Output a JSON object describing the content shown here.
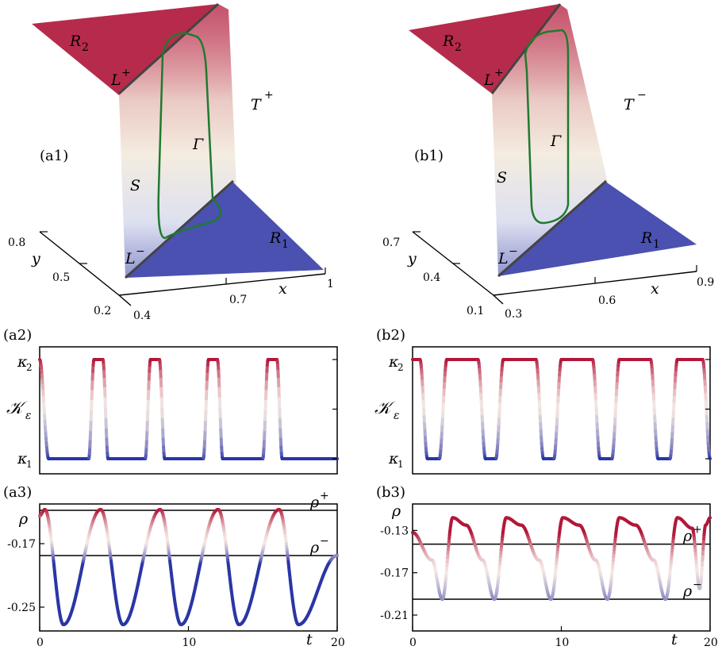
{
  "colors": {
    "kappa_high": "#B2183A",
    "kappa_mid": "#F4E8E4",
    "kappa_low": "#2B36A6",
    "cycle_line": "#1F7A2E",
    "axis": "#000000"
  },
  "chart_data": [
    {
      "id": "a1",
      "type": "surface3d",
      "panel_label": "(a1)",
      "x_ticks": [
        "0.4",
        "0.7",
        "1"
      ],
      "y_ticks": [
        "0.2",
        "0.5",
        "0.8"
      ],
      "xlabel": "x",
      "ylabel": "y",
      "region_labels": {
        "upper": "R",
        "upper_sub": "2",
        "lower": "R",
        "lower_sub": "1",
        "slope": "S",
        "fold_top": "L",
        "fold_top_sup": "+",
        "fold_bottom": "L",
        "fold_bottom_sup": "−",
        "cycle": "Γ",
        "title": "T",
        "title_sup": "+"
      }
    },
    {
      "id": "b1",
      "type": "surface3d",
      "panel_label": "(b1)",
      "x_ticks": [
        "0.3",
        "0.6",
        "0.9"
      ],
      "y_ticks": [
        "0.1",
        "0.4",
        "0.7"
      ],
      "xlabel": "x",
      "ylabel": "y",
      "region_labels": {
        "upper": "R",
        "upper_sub": "2",
        "lower": "R",
        "lower_sub": "1",
        "slope": "S",
        "fold_top": "L",
        "fold_top_sup": "+",
        "fold_bottom": "L",
        "fold_bottom_sup": "−",
        "cycle": "Γ",
        "title": "T",
        "title_sup": "−"
      }
    },
    {
      "id": "a2",
      "type": "line",
      "panel_label": "(a2)",
      "ylabel": "𝒦",
      "ylabel_sub": "ε",
      "y_ticks": [
        {
          "text": "κ",
          "sub": "2",
          "v": 1
        },
        {
          "text": "κ",
          "sub": "1",
          "v": 0
        }
      ],
      "xlim": [
        0,
        20
      ],
      "ylim": [
        0,
        1
      ],
      "pulses": [
        {
          "start": 3.3,
          "end": 4.6
        },
        {
          "start": 7.1,
          "end": 8.4
        },
        {
          "start": 11.0,
          "end": 12.3
        },
        {
          "start": 15.0,
          "end": 16.3
        }
      ],
      "initial_high_until": 0.6
    },
    {
      "id": "b2",
      "type": "line",
      "panel_label": "(b2)",
      "ylabel": "𝒦",
      "ylabel_sub": "ε",
      "y_ticks": [
        {
          "text": "κ",
          "sub": "2",
          "v": 1
        },
        {
          "text": "κ",
          "sub": "1",
          "v": 0
        }
      ],
      "xlim": [
        0,
        20
      ],
      "ylim": [
        0,
        1
      ],
      "dips": [
        {
          "start": 0.5,
          "end": 2.3
        },
        {
          "start": 4.4,
          "end": 6.1
        },
        {
          "start": 8.3,
          "end": 10.0
        },
        {
          "start": 12.1,
          "end": 13.9
        },
        {
          "start": 16.0,
          "end": 17.8
        }
      ],
      "final_drop_at": 19.5
    },
    {
      "id": "a3",
      "type": "line",
      "panel_label": "(a3)",
      "ylabel": "ρ",
      "xlabel": "t",
      "xlim": [
        0,
        20
      ],
      "ylim": [
        -0.28,
        -0.12
      ],
      "x_ticks": [
        0,
        10,
        20
      ],
      "y_ticks": [
        -0.17,
        -0.25
      ],
      "hlines": [
        {
          "y": -0.128,
          "label": "ρ",
          "sup": "+"
        },
        {
          "y": -0.185,
          "label": "ρ",
          "sup": "−"
        }
      ],
      "peaks_t": [
        0.35,
        4.1,
        8.1,
        12.0,
        16.1
      ],
      "troughs_t": [
        1.6,
        5.6,
        9.5,
        13.4,
        17.4
      ],
      "peak_value": -0.127,
      "trough_value": -0.272,
      "end_value": -0.185
    },
    {
      "id": "b3",
      "type": "line",
      "panel_label": "(b3)",
      "ylabel": "ρ",
      "xlabel": "t",
      "xlim": [
        0,
        20
      ],
      "ylim": [
        -0.225,
        -0.105
      ],
      "x_ticks": [
        0,
        10,
        20
      ],
      "y_ticks": [
        -0.13,
        -0.17,
        -0.21
      ],
      "hlines": [
        {
          "y": -0.143,
          "label": "ρ",
          "sup": "+"
        },
        {
          "y": -0.195,
          "label": "ρ",
          "sup": "−"
        }
      ],
      "points": [
        [
          0,
          -0.132
        ],
        [
          1.3,
          -0.158
        ],
        [
          2.0,
          -0.195
        ],
        [
          2.7,
          -0.118
        ],
        [
          3.6,
          -0.125
        ],
        [
          4.7,
          -0.158
        ],
        [
          5.5,
          -0.195
        ],
        [
          6.3,
          -0.118
        ],
        [
          7.3,
          -0.125
        ],
        [
          8.5,
          -0.158
        ],
        [
          9.3,
          -0.195
        ],
        [
          10.1,
          -0.118
        ],
        [
          11.2,
          -0.125
        ],
        [
          12.3,
          -0.158
        ],
        [
          13.1,
          -0.195
        ],
        [
          13.9,
          -0.118
        ],
        [
          15.0,
          -0.125
        ],
        [
          16.2,
          -0.158
        ],
        [
          17.0,
          -0.195
        ],
        [
          17.8,
          -0.118
        ],
        [
          18.8,
          -0.128
        ],
        [
          19.3,
          -0.185
        ],
        [
          19.7,
          -0.125
        ],
        [
          20,
          -0.118
        ]
      ]
    }
  ]
}
